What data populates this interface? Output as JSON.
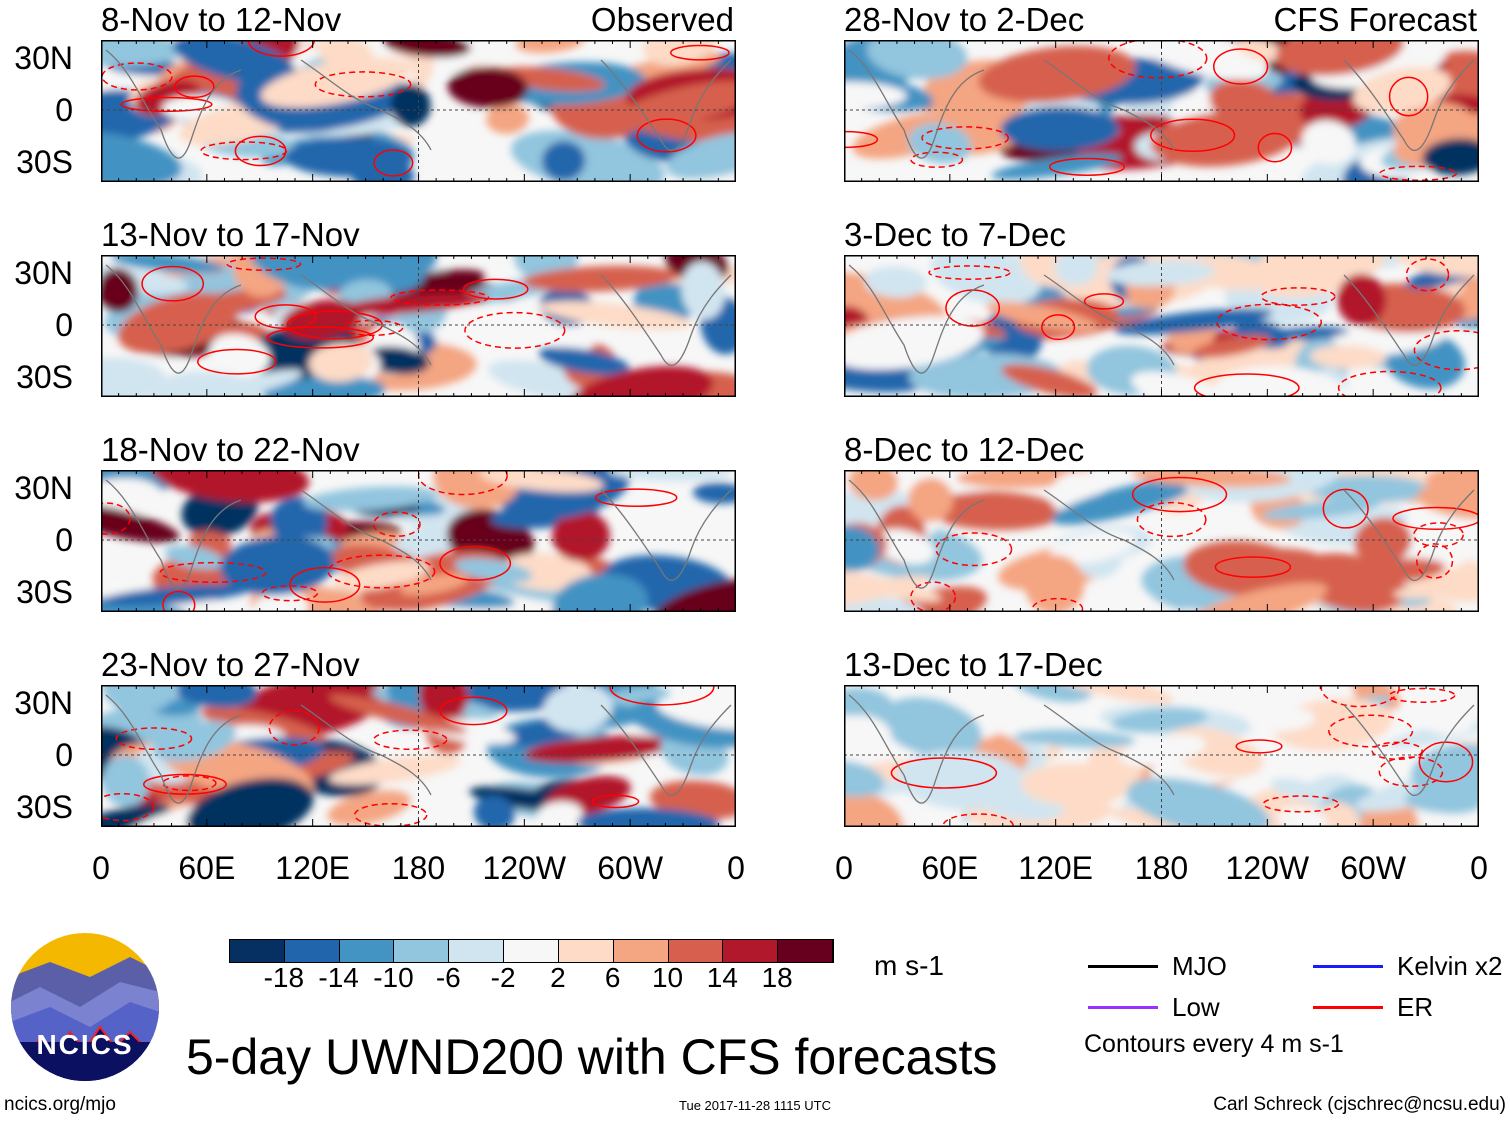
{
  "title": "5-day UWND200 with CFS forecasts",
  "logo_text": "NCICS",
  "footer": {
    "left": "ncics.org/mjo",
    "center": "Tue 2017-11-28 1115 UTC",
    "right": "Carl Schreck (cjschrec@ncsu.edu)"
  },
  "columns": [
    {
      "label": "Observed",
      "panels": [
        "8-Nov to 12-Nov",
        "13-Nov to 17-Nov",
        "18-Nov to 22-Nov",
        "23-Nov to 27-Nov"
      ]
    },
    {
      "label": "CFS Forecast",
      "panels": [
        "28-Nov to 2-Dec",
        "3-Dec to 7-Dec",
        "8-Dec to 12-Dec",
        "13-Dec to 17-Dec"
      ]
    }
  ],
  "y_ticks": [
    "30N",
    "0",
    "30S"
  ],
  "x_ticks": [
    "0",
    "60E",
    "120E",
    "180",
    "120W",
    "60W",
    "0"
  ],
  "colorbar": {
    "units": "m s-1",
    "labels": [
      "-18",
      "-14",
      "-10",
      "-6",
      "-2",
      "2",
      "6",
      "10",
      "14",
      "18"
    ],
    "colors": [
      "#053061",
      "#2166ac",
      "#4393c3",
      "#92c5de",
      "#d1e5f0",
      "#f7f7f7",
      "#fddbc7",
      "#f4a582",
      "#d6604d",
      "#b2182b",
      "#67001f"
    ]
  },
  "legend": {
    "items": [
      {
        "label": "MJO",
        "color": "#000000"
      },
      {
        "label": "Kelvin x2",
        "color": "#1a1aff"
      },
      {
        "label": "Low",
        "color": "#9b30ff"
      },
      {
        "label": "ER",
        "color": "#ff0000"
      }
    ],
    "note": "Contours every 4 m s-1"
  }
}
